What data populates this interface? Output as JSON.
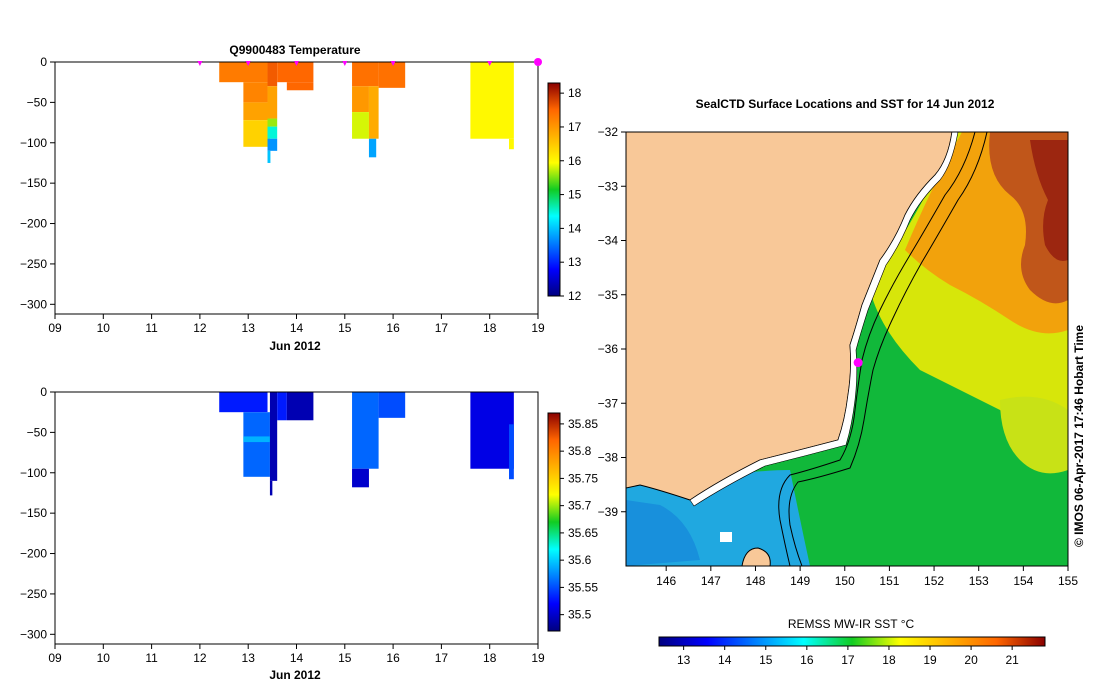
{
  "chart_data": [
    {
      "id": "temperature-section",
      "type": "heatmap",
      "title": "Q9900483  Temperature",
      "xlabel": "Jun 2012",
      "ylabel": "",
      "x_ticks": [
        "09",
        "10",
        "11",
        "12",
        "13",
        "14",
        "15",
        "16",
        "17",
        "18",
        "19"
      ],
      "x_range_days": [
        9,
        19
      ],
      "y_ticks": [
        0,
        -50,
        -100,
        -150,
        -200,
        -250,
        -300
      ],
      "y_range_m": [
        -312,
        0
      ],
      "profile_markers_day": [
        12.0,
        13.0,
        14.0,
        15.0,
        16.0,
        18.0,
        19.0
      ],
      "current_profile_day": 19.0,
      "colorbar": {
        "ticks": [
          12,
          13,
          14,
          15,
          16,
          17,
          18
        ],
        "range": [
          12,
          18.3
        ]
      },
      "blocks": [
        {
          "x": [
            12.4,
            13.4
          ],
          "y": [
            0,
            -25
          ],
          "value": 17.3
        },
        {
          "x": [
            12.9,
            13.4
          ],
          "y": [
            -25,
            -50
          ],
          "value": 17.2
        },
        {
          "x": [
            12.9,
            13.45
          ],
          "y": [
            -50,
            -72
          ],
          "value": 16.9
        },
        {
          "x": [
            12.9,
            13.45
          ],
          "y": [
            -72,
            -105
          ],
          "value": 16.4
        },
        {
          "x": [
            13.4,
            13.6
          ],
          "y": [
            0,
            -30
          ],
          "value": 17.6
        },
        {
          "x": [
            13.4,
            13.6
          ],
          "y": [
            -30,
            -70
          ],
          "value": 16.9
        },
        {
          "x": [
            13.4,
            13.6
          ],
          "y": [
            -70,
            -80
          ],
          "value": 15.6
        },
        {
          "x": [
            13.4,
            13.6
          ],
          "y": [
            -80,
            -95
          ],
          "value": 14.5
        },
        {
          "x": [
            13.4,
            13.6
          ],
          "y": [
            -95,
            -110
          ],
          "value": 13.7
        },
        {
          "x": [
            13.4,
            13.46
          ],
          "y": [
            -110,
            -125
          ],
          "value": 14.0
        },
        {
          "x": [
            13.6,
            14.35
          ],
          "y": [
            0,
            -25
          ],
          "value": 17.5
        },
        {
          "x": [
            13.8,
            14.35
          ],
          "y": [
            -25,
            -35
          ],
          "value": 17.5
        },
        {
          "x": [
            15.15,
            15.7
          ],
          "y": [
            0,
            -30
          ],
          "value": 17.4
        },
        {
          "x": [
            15.15,
            15.5
          ],
          "y": [
            -30,
            -62
          ],
          "value": 17.0
        },
        {
          "x": [
            15.15,
            15.5
          ],
          "y": [
            -62,
            -95
          ],
          "value": 15.8
        },
        {
          "x": [
            15.5,
            15.7
          ],
          "y": [
            -30,
            -95
          ],
          "value": 16.8
        },
        {
          "x": [
            15.5,
            15.65
          ],
          "y": [
            -95,
            -118
          ],
          "value": 13.8
        },
        {
          "x": [
            15.7,
            16.25
          ],
          "y": [
            0,
            -32
          ],
          "value": 17.4
        },
        {
          "x": [
            17.6,
            18.5
          ],
          "y": [
            0,
            -95
          ],
          "value": 16.0
        },
        {
          "x": [
            18.4,
            18.5
          ],
          "y": [
            -95,
            -108
          ],
          "value": 16.0
        }
      ]
    },
    {
      "id": "salinity-section",
      "type": "heatmap",
      "title": "",
      "xlabel": "Jun 2012",
      "ylabel": "",
      "x_ticks": [
        "09",
        "10",
        "11",
        "12",
        "13",
        "14",
        "15",
        "16",
        "17",
        "18",
        "19"
      ],
      "x_range_days": [
        9,
        19
      ],
      "y_ticks": [
        0,
        -50,
        -100,
        -150,
        -200,
        -250,
        -300
      ],
      "y_range_m": [
        -312,
        0
      ],
      "colorbar": {
        "ticks": [
          35.5,
          35.55,
          35.6,
          35.65,
          35.7,
          35.75,
          35.8,
          35.85
        ],
        "range": [
          35.47,
          35.87
        ]
      },
      "blocks": [
        {
          "x": [
            12.4,
            13.4
          ],
          "y": [
            0,
            -25
          ],
          "value": 35.53
        },
        {
          "x": [
            12.9,
            13.45
          ],
          "y": [
            -25,
            -105
          ],
          "value": 35.56
        },
        {
          "x": [
            12.9,
            13.45
          ],
          "y": [
            -55,
            -62
          ],
          "value": 35.59
        },
        {
          "x": [
            13.45,
            13.6
          ],
          "y": [
            0,
            -110
          ],
          "value": 35.49
        },
        {
          "x": [
            13.45,
            13.5
          ],
          "y": [
            -110,
            -128
          ],
          "value": 35.49
        },
        {
          "x": [
            13.6,
            13.8
          ],
          "y": [
            0,
            -35
          ],
          "value": 35.53
        },
        {
          "x": [
            13.8,
            14.35
          ],
          "y": [
            0,
            -35
          ],
          "value": 35.49
        },
        {
          "x": [
            15.15,
            15.7
          ],
          "y": [
            0,
            -95
          ],
          "value": 35.56
        },
        {
          "x": [
            15.15,
            15.5
          ],
          "y": [
            -95,
            -118
          ],
          "value": 35.5
        },
        {
          "x": [
            15.7,
            16.25
          ],
          "y": [
            0,
            -32
          ],
          "value": 35.55
        },
        {
          "x": [
            17.6,
            18.5
          ],
          "y": [
            0,
            -95
          ],
          "value": 35.51
        },
        {
          "x": [
            18.4,
            18.5
          ],
          "y": [
            -40,
            -108
          ],
          "value": 35.55
        }
      ]
    },
    {
      "id": "sst-map",
      "type": "heatmap",
      "title": "SealCTD Surface Locations and SST for 14 Jun 2012",
      "xlabel": "",
      "ylabel": "",
      "x_ticks": [
        146,
        147,
        148,
        149,
        150,
        151,
        152,
        153,
        154,
        155
      ],
      "x_range_lon": [
        145.1,
        155.0
      ],
      "y_ticks": [
        -32,
        -33,
        -34,
        -35,
        -36,
        -37,
        -38,
        -39
      ],
      "y_range_lat": [
        -40.0,
        -32.0
      ],
      "seal_location": {
        "lon": 150.3,
        "lat": -36.25
      },
      "colorbar": {
        "label": "REMSS MW-IR SST °C",
        "ticks": [
          13,
          14,
          15,
          16,
          17,
          18,
          19,
          20,
          21
        ],
        "range": [
          12.4,
          21.8
        ]
      },
      "credit": "© IMOS 06-Apr-2017 17:46 Hobart Time"
    }
  ],
  "colors": {
    "land": "#f8c898",
    "marker": "#ff00ff",
    "background": "#ffffff"
  }
}
